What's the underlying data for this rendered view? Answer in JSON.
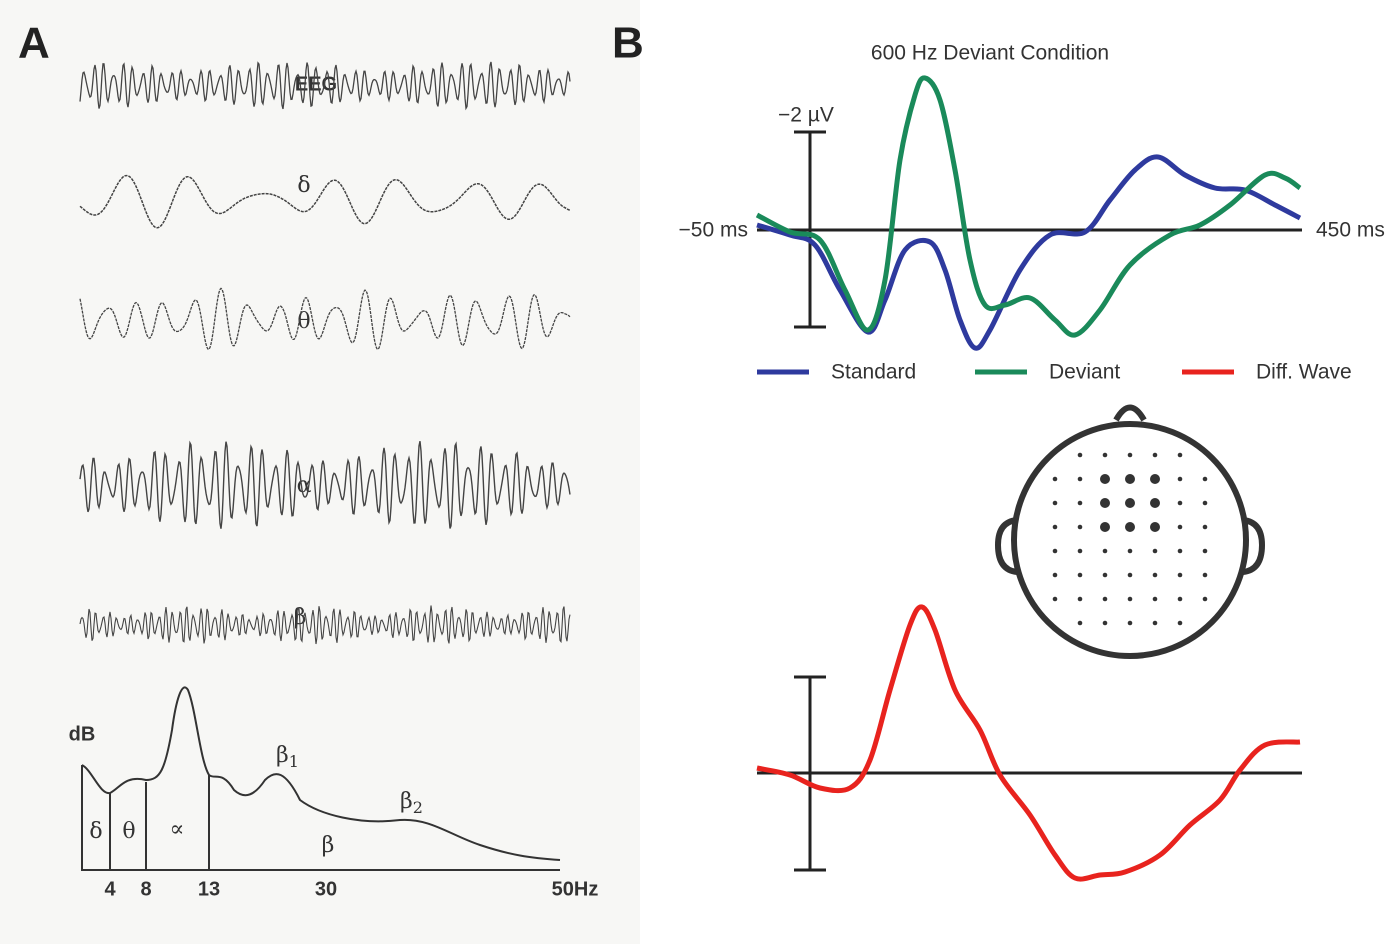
{
  "panel_a": {
    "label": "A",
    "traces": [
      "EEG",
      "δ",
      "θ",
      "α",
      "β"
    ],
    "spectrum": {
      "y_label": "dB",
      "bands": [
        "δ",
        "θ",
        "∝",
        "β"
      ],
      "peaks": [
        {
          "symbol": "β",
          "sub": "1"
        },
        {
          "symbol": "β",
          "sub": "2"
        }
      ],
      "freq_labels": [
        "4",
        "8",
        "13",
        "30",
        "50Hz"
      ]
    }
  },
  "panel_b": {
    "label": "B",
    "title": "600 Hz Deviant Condition",
    "amplitude_label": "−2 µV",
    "time_start": "−50 ms",
    "time_end": "450 ms",
    "legend": [
      {
        "name": "Standard",
        "color": "#2e3a9e"
      },
      {
        "name": "Deviant",
        "color": "#1a8a5a"
      },
      {
        "name": "Diff. Wave",
        "color": "#e8231e"
      }
    ]
  }
}
